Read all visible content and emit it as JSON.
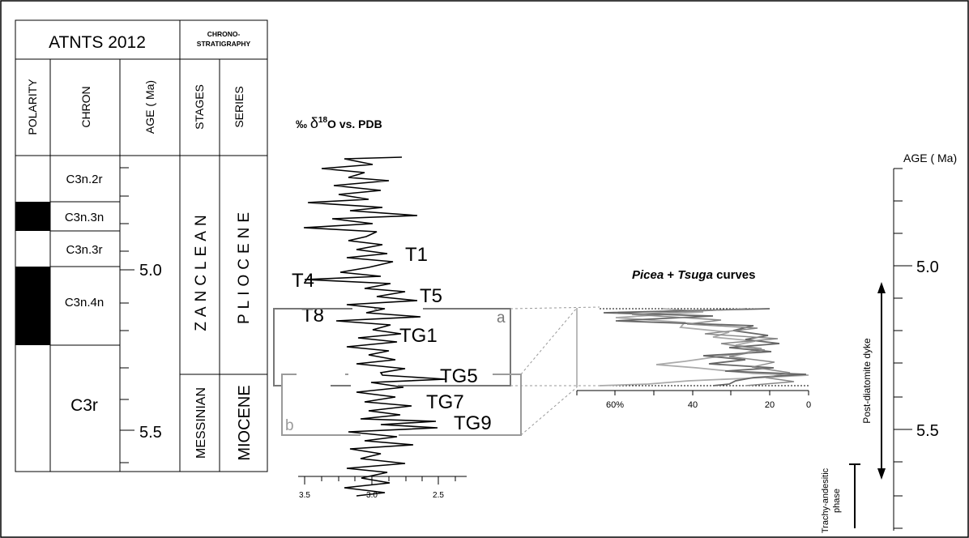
{
  "table": {
    "title": "ATNTS 2012",
    "chrono_header": [
      "CHRONO-",
      "STRATIGRAPHY"
    ],
    "columns": {
      "polarity": "POLARITY",
      "chron": "CHRON",
      "age": "AGE ( Ma)",
      "stages": "STAGES",
      "series": "SERIES"
    },
    "chrons": [
      "C3n.2r",
      "C3n.3n",
      "C3n.3r",
      "C3n.4n",
      "C3r"
    ],
    "age_labels": [
      "5.0",
      "5.5"
    ],
    "stages": [
      "ZANCLEAN",
      "MESSINIAN"
    ],
    "series": [
      "PLIOCENE",
      "MIOCENE"
    ]
  },
  "isotope": {
    "title_prefix": "‰ ",
    "title_delta": "δ",
    "title_sup": "18",
    "title_suffix": "O vs. PDB",
    "x_ticks": [
      "3.5",
      "3.0",
      "2.5"
    ],
    "labels": [
      "T1",
      "T4",
      "T5",
      "T8",
      "TG1",
      "TG5",
      "TG7",
      "TG9"
    ],
    "box_labels": [
      "a",
      "b"
    ]
  },
  "pollen": {
    "title_italic1": "Picea",
    "title_plus": " + ",
    "title_italic2": "Tsuga",
    "title_rest": " curves",
    "x_ticks": [
      "60%",
      "40",
      "20",
      "0"
    ]
  },
  "right_axis": {
    "title": "AGE ( Ma)",
    "labels": [
      "5.0",
      "5.5"
    ],
    "dyke_label": "Post-diatomite dyke",
    "phase_label_1": "Trachy-andesitic",
    "phase_label_2": "phase"
  },
  "colors": {
    "pollen_dark": "#666666",
    "pollen_light": "#aaaaaa",
    "box_a": "#777777",
    "box_b": "#9a9a9a"
  }
}
